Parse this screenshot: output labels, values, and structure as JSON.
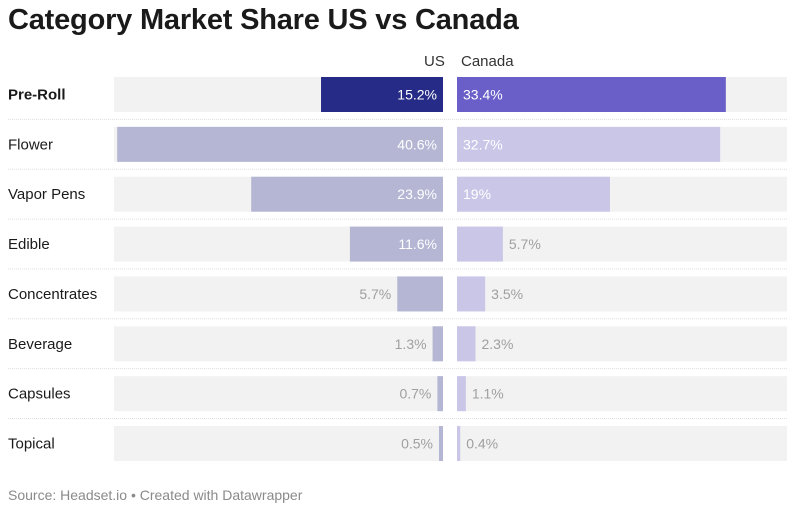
{
  "title": "Category Market Share US vs Canada",
  "source": "Source: Headset.io • Created with Datawrapper",
  "chart_data": {
    "type": "bar",
    "title": "Category Market Share US vs Canada",
    "highlight_category": "Pre-Roll",
    "series": [
      {
        "name": "US",
        "values": [
          15.2,
          40.6,
          23.9,
          11.6,
          5.7,
          1.3,
          0.7,
          0.5
        ],
        "labels": [
          "15.2%",
          "40.6%",
          "23.9%",
          "11.6%",
          "5.7%",
          "1.3%",
          "0.7%",
          "0.5%"
        ],
        "direction": "left"
      },
      {
        "name": "Canada",
        "values": [
          33.4,
          32.7,
          19,
          5.7,
          3.5,
          2.3,
          1.1,
          0.4
        ],
        "labels": [
          "33.4%",
          "32.7%",
          "19%",
          "5.7%",
          "3.5%",
          "2.3%",
          "1.1%",
          "0.4%"
        ],
        "direction": "right"
      }
    ],
    "categories": [
      "Pre-Roll",
      "Flower",
      "Vapor Pens",
      "Edible",
      "Concentrates",
      "Beverage",
      "Capsules",
      "Topical"
    ],
    "xlim": [
      0,
      41
    ],
    "colors": {
      "us_highlight": "#252b86",
      "canada_highlight": "#6a5fc8",
      "us_normal": "#b4b6d3",
      "canada_normal": "#c9c6e8",
      "track": "#f2f2f2",
      "label_light": "#ffffff",
      "label_outside": "#a0a0a0"
    }
  }
}
